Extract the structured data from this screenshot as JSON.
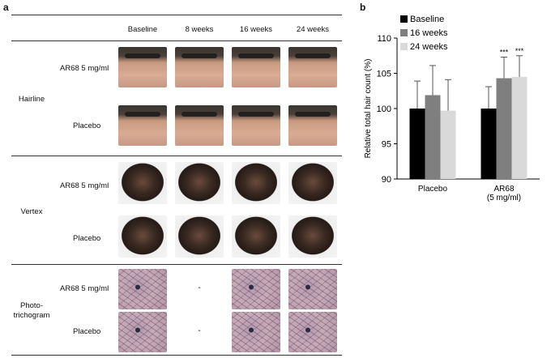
{
  "panel_a": {
    "label": "a",
    "columns": [
      "Baseline",
      "8 weeks",
      "16 weeks",
      "24 weeks"
    ],
    "groups": {
      "hairline": "Hairline",
      "vertex": "Vertex",
      "phototrichogram_line1": "Photo-",
      "phototrichogram_line2": "trichogram"
    },
    "rows": {
      "ar68": "AR68 5 mg/ml",
      "placebo": "Placebo"
    },
    "missing_marker": "-"
  },
  "panel_b": {
    "label": "b"
  },
  "chart_data": {
    "type": "bar",
    "categories": [
      "Placebo",
      "AR68\n(5 mg/ml)"
    ],
    "series": [
      {
        "name": "Baseline",
        "values": [
          100.0,
          100.0
        ],
        "errors": [
          3.9,
          3.1
        ],
        "color": "#000000"
      },
      {
        "name": "16 weeks",
        "values": [
          101.9,
          104.3
        ],
        "errors": [
          4.2,
          3.0
        ],
        "color": "#7f7f7f"
      },
      {
        "name": "24 weeks",
        "values": [
          99.7,
          104.5
        ],
        "errors": [
          4.4,
          3.0
        ],
        "color": "#d9d9d9"
      }
    ],
    "significance": [
      "",
      "***"
    ],
    "significance_series": [
      1,
      2
    ],
    "ylabel": "Relative total hair count (%)",
    "ylim": [
      90,
      110
    ],
    "yticks": [
      90,
      95,
      100,
      105,
      110
    ],
    "legend_placement": "top-left",
    "grid": false
  }
}
